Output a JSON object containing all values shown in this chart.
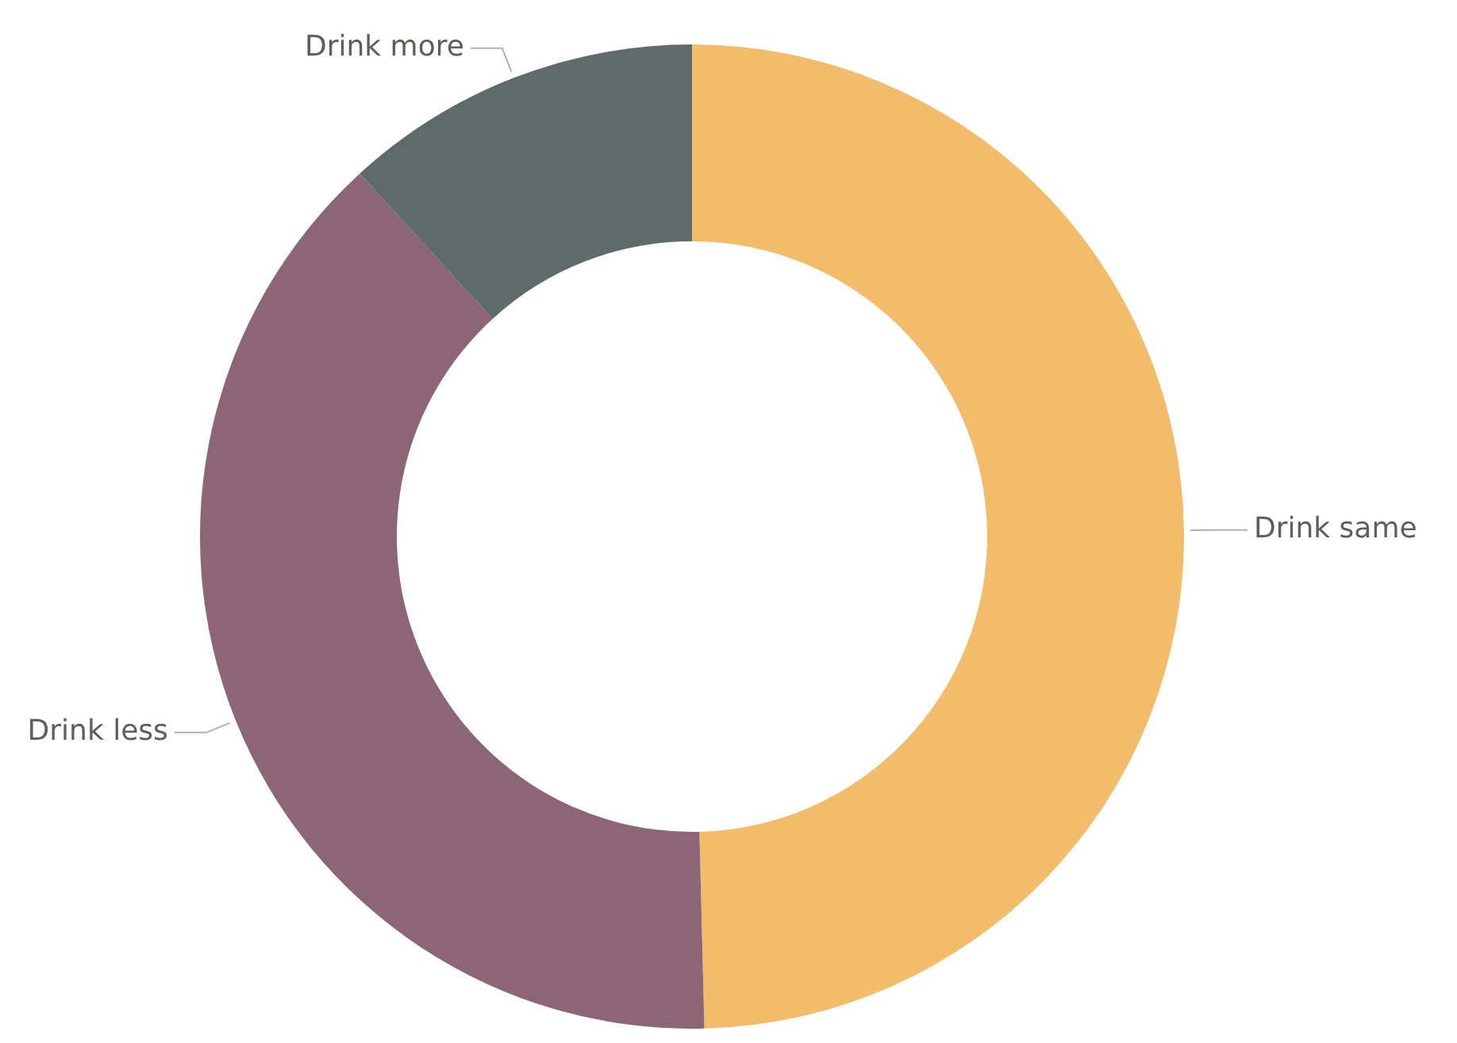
{
  "chart_data": {
    "type": "donut",
    "categories": [
      "Drink same",
      "Drink less",
      "Drink more"
    ],
    "values": [
      49.6,
      38.6,
      11.8
    ],
    "colors": [
      "#f2bc6a",
      "#8c6677",
      "#5f6a6a"
    ],
    "legend": false
  }
}
